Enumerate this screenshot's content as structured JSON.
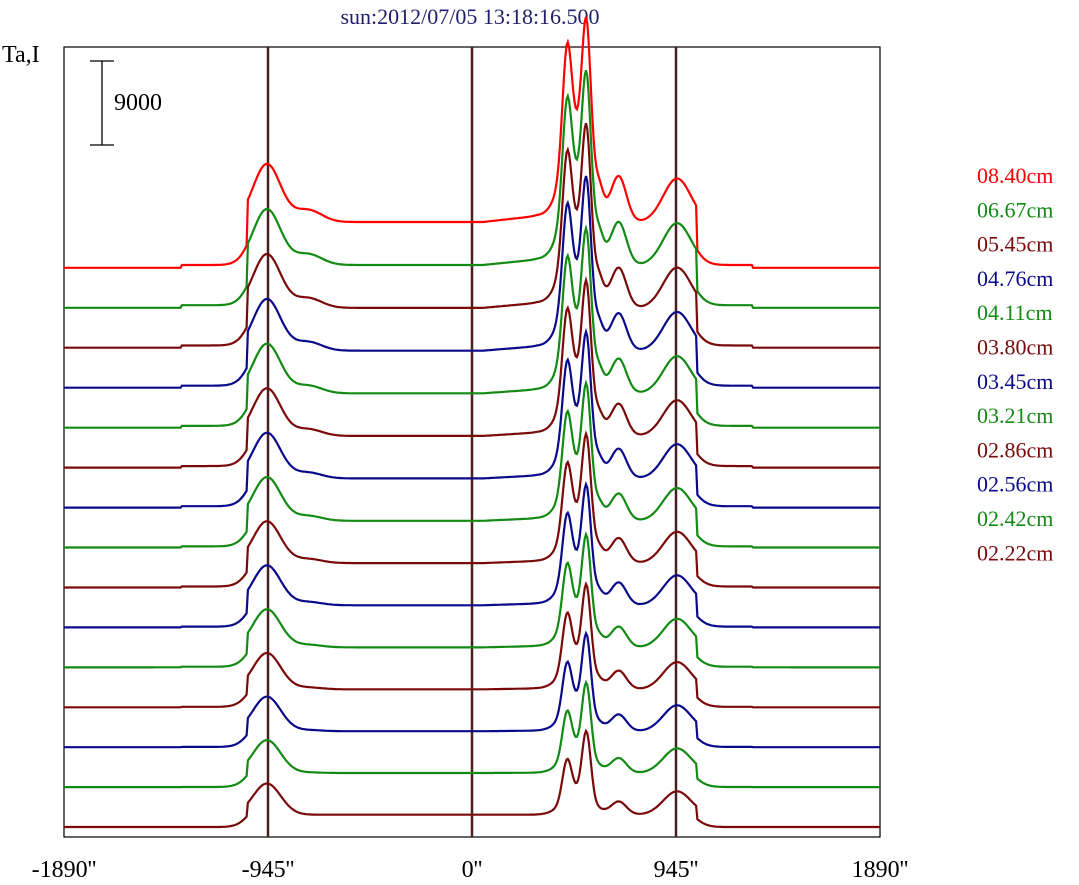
{
  "chart_data": {
    "type": "line",
    "title": "sun:2012/07/05 13:18:16.500",
    "ylabel": "Ta,I",
    "scale_bar_label": "9000",
    "xlim": [
      -1890,
      1890
    ],
    "x_ticks": [
      -1890,
      -945,
      0,
      945,
      1890
    ],
    "x_tick_labels": [
      "-1890''",
      "-945''",
      "0''",
      "945''",
      "1890''"
    ],
    "vertical_lines_at": [
      -945,
      0,
      945
    ],
    "series": [
      {
        "name": "08.40cm",
        "color": "#ff0000"
      },
      {
        "name": "06.67cm",
        "color": "#138a13"
      },
      {
        "name": "05.45cm",
        "color": "#7a0a0a"
      },
      {
        "name": "04.76cm",
        "color": "#0a0a8a"
      },
      {
        "name": "04.11cm",
        "color": "#138a13"
      },
      {
        "name": "03.80cm",
        "color": "#7a0a0a"
      },
      {
        "name": "03.45cm",
        "color": "#0a0a8a"
      },
      {
        "name": "03.21cm",
        "color": "#138a13"
      },
      {
        "name": "02.86cm",
        "color": "#7a0a0a"
      },
      {
        "name": "02.56cm",
        "color": "#0a0a8a"
      },
      {
        "name": "02.42cm",
        "color": "#138a13"
      },
      {
        "name": "02.22cm",
        "color": "#7a0a0a"
      },
      {
        "color": "#0a0a8a"
      },
      {
        "color": "#138a13"
      },
      {
        "color": "#7a0a0a"
      }
    ]
  }
}
